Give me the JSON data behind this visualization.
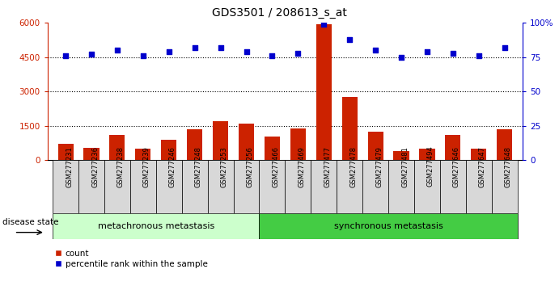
{
  "title": "GDS3501 / 208613_s_at",
  "categories": [
    "GSM277231",
    "GSM277236",
    "GSM277238",
    "GSM277239",
    "GSM277246",
    "GSM277248",
    "GSM277253",
    "GSM277256",
    "GSM277466",
    "GSM277469",
    "GSM277477",
    "GSM277478",
    "GSM277479",
    "GSM277481",
    "GSM277494",
    "GSM277646",
    "GSM277647",
    "GSM277648"
  ],
  "bar_values": [
    700,
    550,
    1100,
    500,
    900,
    1350,
    1700,
    1600,
    1050,
    1400,
    5950,
    2750,
    1250,
    400,
    500,
    1100,
    500,
    1350
  ],
  "scatter_values": [
    76,
    77,
    80,
    76,
    79,
    82,
    82,
    79,
    76,
    78,
    99,
    88,
    80,
    75,
    79,
    78,
    76,
    82
  ],
  "bar_color": "#cc2200",
  "scatter_color": "#0000cc",
  "group1_label": "metachronous metastasis",
  "group1_count": 8,
  "group2_label": "synchronous metastasis",
  "group2_count": 10,
  "group1_color": "#ccffcc",
  "group2_color": "#44cc44",
  "disease_state_label": "disease state",
  "ylim_left": [
    0,
    6000
  ],
  "ylim_right": [
    0,
    100
  ],
  "yticks_left": [
    0,
    1500,
    3000,
    4500,
    6000
  ],
  "yticks_right": [
    0,
    25,
    50,
    75,
    100
  ],
  "grid_values": [
    1500,
    3000,
    4500
  ],
  "legend_count_label": "count",
  "legend_percentile_label": "percentile rank within the sample",
  "bg_color": "#ffffff"
}
